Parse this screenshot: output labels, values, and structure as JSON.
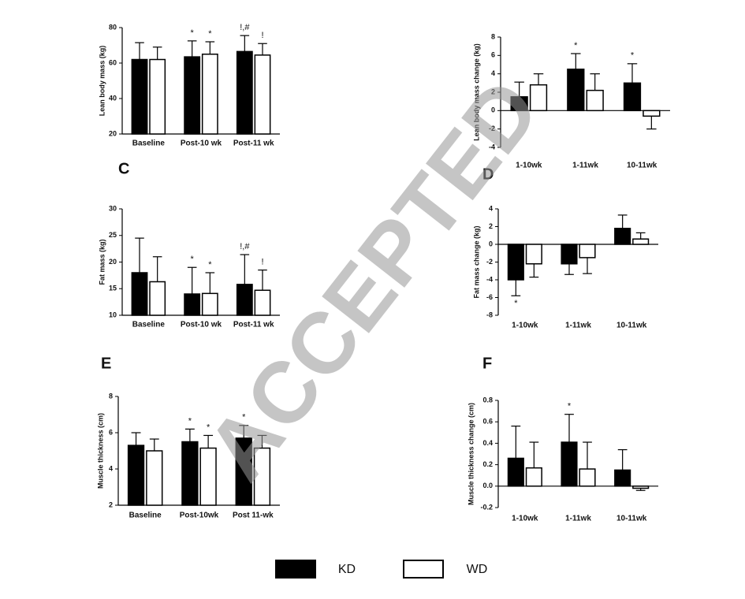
{
  "watermark": "ACCEPTED",
  "legend": [
    {
      "name": "KD",
      "color": "#000000"
    },
    {
      "name": "WD",
      "color": "#ffffff"
    }
  ],
  "chart_data": [
    {
      "type": "bar",
      "ylabel": "Lean body mass (kg)",
      "categories": [
        "Baseline",
        "Post-10 wk",
        "Post-11 wk"
      ],
      "series": [
        {
          "color": "#000000",
          "values": [
            62,
            63.5,
            66.5
          ],
          "errors": [
            9.5,
            9,
            9
          ]
        },
        {
          "color": "#ffffff",
          "values": [
            62,
            65,
            64.5
          ],
          "errors": [
            7,
            7,
            6.5
          ]
        }
      ],
      "ylim": [
        20,
        80
      ],
      "yticks": [
        20,
        40,
        60,
        80
      ],
      "annotations": [
        {
          "text": "*",
          "category": 1,
          "series": 0
        },
        {
          "text": "*",
          "category": 1,
          "series": 1
        },
        {
          "text": "!,#",
          "category": 2,
          "series": 0
        },
        {
          "text": "!",
          "category": 2,
          "series": 1
        }
      ]
    },
    {
      "type": "bar",
      "ylabel": "Lean body mass change (kg)",
      "categories": [
        "1-10wk",
        "1-11wk",
        "10-11wk"
      ],
      "series": [
        {
          "color": "#000000",
          "values": [
            1.5,
            4.5,
            3.0
          ],
          "errors": [
            1.6,
            1.7,
            2.1
          ]
        },
        {
          "color": "#ffffff",
          "values": [
            2.8,
            2.2,
            -0.6
          ],
          "errors": [
            1.2,
            1.8,
            1.4
          ]
        }
      ],
      "ylim": [
        -4,
        8
      ],
      "yticks": [
        -4,
        -2,
        0,
        2,
        4,
        6,
        8
      ],
      "annotations": [
        {
          "text": "*",
          "category": 1,
          "series": 0
        },
        {
          "text": "*",
          "category": 2,
          "series": 0
        }
      ]
    },
    {
      "type": "bar",
      "panel": "C",
      "ylabel": "Fat mass (kg)",
      "categories": [
        "Baseline",
        "Post-10 wk",
        "Post-11 wk"
      ],
      "series": [
        {
          "color": "#000000",
          "values": [
            18,
            14,
            15.8
          ],
          "errors": [
            6.5,
            5,
            5.6
          ]
        },
        {
          "color": "#ffffff",
          "values": [
            16.3,
            14.1,
            14.7
          ],
          "errors": [
            4.7,
            3.9,
            3.8
          ]
        }
      ],
      "ylim": [
        10,
        30
      ],
      "yticks": [
        10,
        15,
        20,
        25,
        30
      ],
      "annotations": [
        {
          "text": "*",
          "category": 1,
          "series": 0
        },
        {
          "text": "*",
          "category": 1,
          "series": 1
        },
        {
          "text": "!,#",
          "category": 2,
          "series": 0
        },
        {
          "text": "!",
          "category": 2,
          "series": 1
        }
      ]
    },
    {
      "type": "bar",
      "panel": "D",
      "ylabel": "Fat mass change (kg)",
      "categories": [
        "1-10wk",
        "1-11wk",
        "10-11wk"
      ],
      "series": [
        {
          "color": "#000000",
          "values": [
            -4.0,
            -2.2,
            1.8
          ],
          "errors": [
            1.8,
            1.2,
            1.5
          ]
        },
        {
          "color": "#ffffff",
          "values": [
            -2.2,
            -1.5,
            0.6
          ],
          "errors": [
            1.5,
            1.8,
            0.7
          ]
        }
      ],
      "ylim": [
        -8,
        4
      ],
      "yticks": [
        -8,
        -6,
        -4,
        -2,
        0,
        2,
        4
      ],
      "annotations": [
        {
          "text": "*",
          "category": 0,
          "series": 0
        }
      ]
    },
    {
      "type": "bar",
      "panel": "E",
      "ylabel": "Muscle thickness (cm)",
      "categories": [
        "Baseline",
        "Post-10wk",
        "Post 11-wk"
      ],
      "series": [
        {
          "color": "#000000",
          "values": [
            5.3,
            5.5,
            5.7
          ],
          "errors": [
            0.7,
            0.7,
            0.7
          ]
        },
        {
          "color": "#ffffff",
          "values": [
            5.0,
            5.15,
            5.15
          ],
          "errors": [
            0.65,
            0.7,
            0.7
          ]
        }
      ],
      "ylim": [
        2,
        8
      ],
      "yticks": [
        2,
        4,
        6,
        8
      ],
      "annotations": [
        {
          "text": "*",
          "category": 1,
          "series": 0
        },
        {
          "text": "*",
          "category": 1,
          "series": 1
        },
        {
          "text": "*",
          "category": 2,
          "series": 0
        }
      ]
    },
    {
      "type": "bar",
      "panel": "F",
      "ylabel": "Muscle thickness change (cm)",
      "categories": [
        "1-10wk",
        "1-11wk",
        "10-11wk"
      ],
      "series": [
        {
          "color": "#000000",
          "values": [
            0.26,
            0.41,
            0.15
          ],
          "errors": [
            0.3,
            0.26,
            0.19
          ]
        },
        {
          "color": "#ffffff",
          "values": [
            0.17,
            0.16,
            -0.02
          ],
          "errors": [
            0.24,
            0.25,
            0.02
          ]
        }
      ],
      "ylim": [
        -0.2,
        0.8
      ],
      "yticks": [
        -0.2,
        {
          "value": 0,
          "label": "0.0"
        },
        0.2,
        0.4,
        0.6,
        0.8
      ],
      "annotations": [
        {
          "text": "*",
          "category": 1,
          "series": 0
        }
      ]
    }
  ]
}
